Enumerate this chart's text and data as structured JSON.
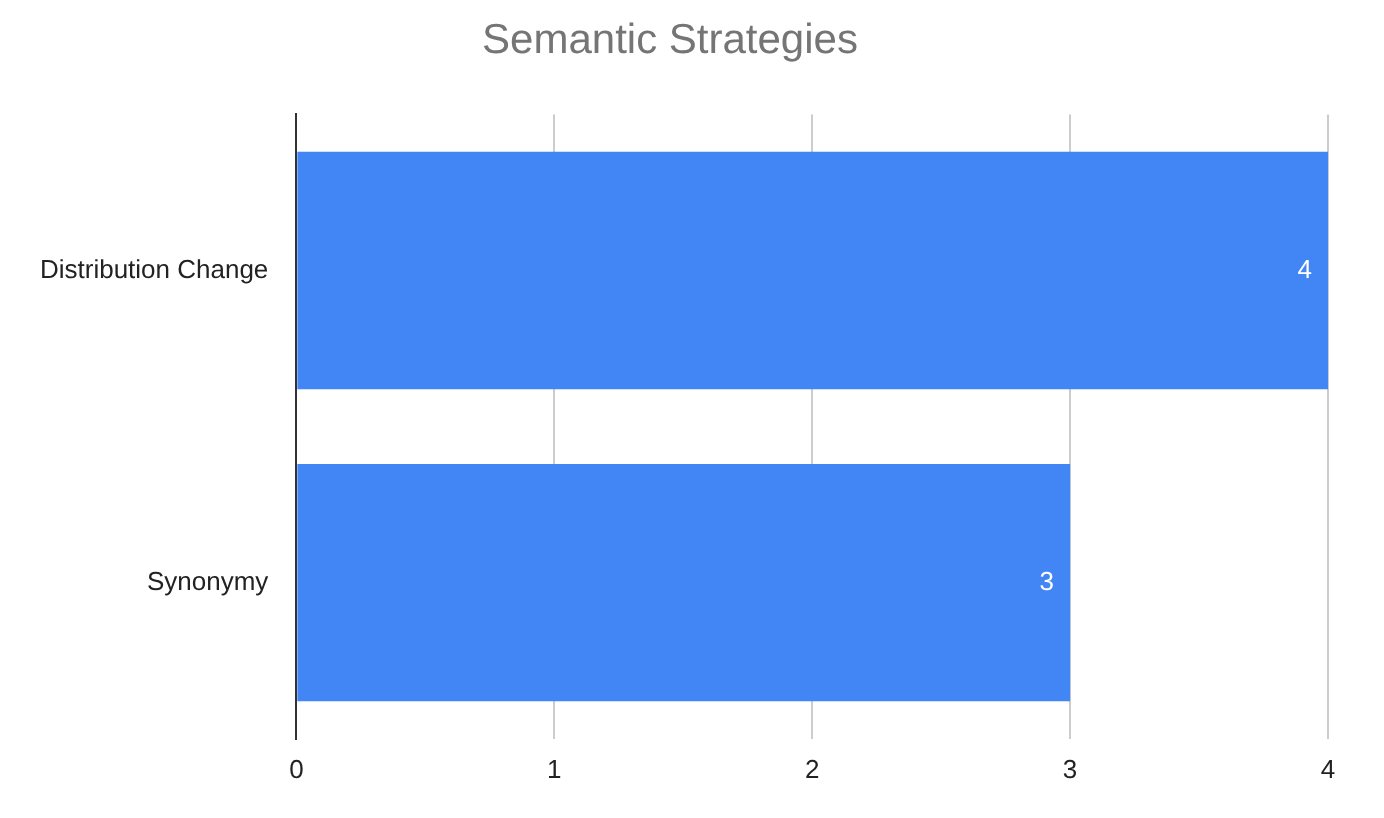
{
  "chart_data": {
    "type": "bar",
    "orientation": "horizontal",
    "title": "Semantic Strategies",
    "categories": [
      "Distribution Change",
      "Synonymy"
    ],
    "values": [
      4,
      3
    ],
    "color": "#4285f4",
    "xlim": [
      0,
      4
    ],
    "xticks": [
      0,
      1,
      2,
      3,
      4
    ],
    "grid": "x",
    "data_labels": true
  }
}
